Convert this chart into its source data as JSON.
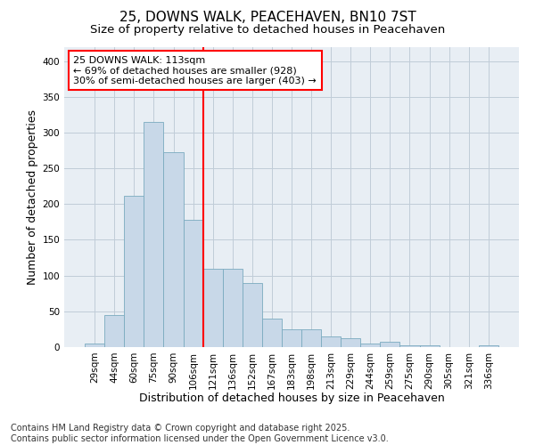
{
  "title1": "25, DOWNS WALK, PEACEHAVEN, BN10 7ST",
  "title2": "Size of property relative to detached houses in Peacehaven",
  "xlabel": "Distribution of detached houses by size in Peacehaven",
  "ylabel": "Number of detached properties",
  "categories": [
    "29sqm",
    "44sqm",
    "60sqm",
    "75sqm",
    "90sqm",
    "106sqm",
    "121sqm",
    "136sqm",
    "152sqm",
    "167sqm",
    "183sqm",
    "198sqm",
    "213sqm",
    "229sqm",
    "244sqm",
    "259sqm",
    "275sqm",
    "290sqm",
    "305sqm",
    "321sqm",
    "336sqm"
  ],
  "values": [
    5,
    45,
    212,
    315,
    272,
    178,
    110,
    110,
    90,
    40,
    25,
    25,
    15,
    13,
    5,
    7,
    3,
    2,
    0,
    0,
    3
  ],
  "bar_color": "#c8d8e8",
  "bar_edge_color": "#7aaabf",
  "vline_color": "red",
  "annotation_text": "25 DOWNS WALK: 113sqm\n← 69% of detached houses are smaller (928)\n30% of semi-detached houses are larger (403) →",
  "annotation_box_color": "white",
  "annotation_box_edge_color": "red",
  "ylim": [
    0,
    420
  ],
  "yticks": [
    0,
    50,
    100,
    150,
    200,
    250,
    300,
    350,
    400
  ],
  "grid_color": "#c0ccd8",
  "background_color": "#e8eef4",
  "footnote": "Contains HM Land Registry data © Crown copyright and database right 2025.\nContains public sector information licensed under the Open Government Licence v3.0.",
  "title1_fontsize": 11,
  "title2_fontsize": 9.5,
  "xlabel_fontsize": 9,
  "ylabel_fontsize": 9,
  "tick_fontsize": 7.5,
  "annotation_fontsize": 8,
  "footnote_fontsize": 7
}
